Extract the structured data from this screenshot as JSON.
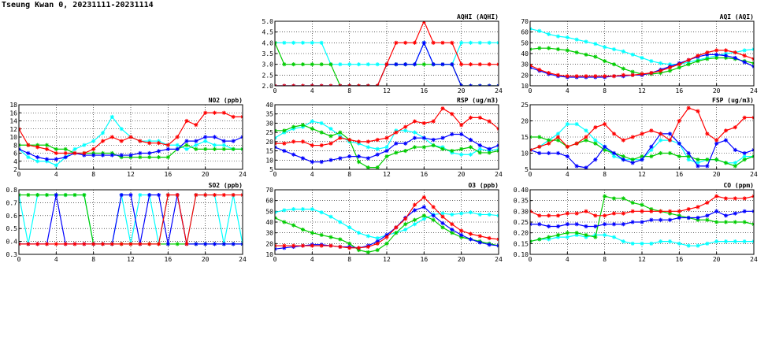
{
  "title": "Tseung Kwan 0, 20231111-20231114",
  "colors": {
    "red": "#ff0000",
    "blue": "#0000ff",
    "green": "#00cc00",
    "cyan": "#00ffff",
    "grid": "#000000"
  },
  "chart_data": [
    {
      "id": "aqhi",
      "type": "line",
      "title": "AQHI (AQHI)",
      "xlim": [
        0,
        24
      ],
      "xticks": [
        0,
        4,
        8,
        12,
        16,
        20,
        24
      ],
      "ylim": [
        2,
        5
      ],
      "yticks": [
        2.0,
        2.5,
        3.0,
        3.5,
        4.0,
        4.5,
        5.0
      ],
      "ytick_decimals": 1,
      "series": [
        {
          "color": "cyan",
          "values": [
            4,
            4,
            4,
            4,
            4,
            4,
            3,
            3,
            3,
            3,
            3,
            3,
            3,
            3,
            3,
            3,
            4,
            3,
            3,
            3,
            4,
            4,
            4,
            4,
            4
          ]
        },
        {
          "color": "green",
          "values": [
            4,
            3,
            3,
            3,
            3,
            3,
            3,
            2,
            2,
            2,
            2,
            2,
            3,
            3,
            3,
            3,
            3,
            3,
            3,
            3,
            2,
            2,
            2,
            2,
            2
          ]
        },
        {
          "color": "blue",
          "values": [
            2,
            2,
            2,
            2,
            2,
            2,
            2,
            2,
            2,
            2,
            2,
            2,
            3,
            3,
            3,
            3,
            4,
            3,
            3,
            3,
            2,
            2,
            2,
            2,
            2
          ]
        },
        {
          "color": "red",
          "values": [
            2,
            2,
            2,
            2,
            2,
            2,
            2,
            2,
            2,
            2,
            2,
            2,
            3,
            4,
            4,
            4,
            5,
            4,
            4,
            4,
            3,
            3,
            3,
            3,
            3
          ]
        }
      ]
    },
    {
      "id": "aqi",
      "type": "line",
      "title": "AQI (AQI)",
      "xlim": [
        0,
        24
      ],
      "xticks": [
        0,
        4,
        8,
        12,
        16,
        20,
        24
      ],
      "ylim": [
        10,
        70
      ],
      "yticks": [
        10,
        20,
        30,
        40,
        50,
        60,
        70
      ],
      "ytick_decimals": 0,
      "series": [
        {
          "color": "cyan",
          "values": [
            63,
            61,
            58,
            56,
            55,
            53,
            51,
            49,
            46,
            44,
            42,
            39,
            36,
            33,
            31,
            30,
            30,
            32,
            34,
            36,
            38,
            40,
            41,
            43,
            44
          ]
        },
        {
          "color": "green",
          "values": [
            44,
            45,
            45,
            44,
            43,
            41,
            39,
            37,
            33,
            30,
            26,
            23,
            21,
            21,
            22,
            24,
            27,
            30,
            33,
            35,
            36,
            36,
            35,
            33,
            31
          ]
        },
        {
          "color": "blue",
          "values": [
            27,
            24,
            21,
            19,
            18,
            18,
            18,
            18,
            18,
            19,
            19,
            20,
            20,
            22,
            25,
            28,
            31,
            34,
            37,
            39,
            39,
            38,
            36,
            32,
            28
          ]
        },
        {
          "color": "red",
          "values": [
            29,
            25,
            22,
            20,
            19,
            19,
            19,
            19,
            19,
            19,
            20,
            20,
            21,
            22,
            24,
            27,
            30,
            34,
            38,
            41,
            43,
            43,
            41,
            38,
            35
          ]
        }
      ]
    },
    {
      "id": "no2",
      "type": "line",
      "title": "NO2 (ppb)",
      "xlim": [
        0,
        24
      ],
      "xticks": [
        0,
        4,
        8,
        12,
        16,
        20,
        24
      ],
      "ylim": [
        2,
        18
      ],
      "yticks": [
        2,
        4,
        6,
        8,
        10,
        12,
        14,
        16,
        18
      ],
      "ytick_decimals": 0,
      "series": [
        {
          "color": "cyan",
          "values": [
            7,
            5,
            4,
            4,
            3,
            5,
            7,
            8,
            9,
            11,
            15,
            12,
            10,
            9,
            9,
            9,
            8,
            8,
            7,
            8,
            9,
            8,
            8,
            7,
            7
          ]
        },
        {
          "color": "green",
          "values": [
            8,
            8,
            8,
            8,
            7,
            7,
            6,
            6,
            6,
            6,
            6,
            5,
            5,
            5,
            5,
            5,
            5,
            7,
            8,
            7,
            7,
            7,
            7,
            7,
            7
          ]
        },
        {
          "color": "blue",
          "values": [
            7,
            6,
            5,
            4.5,
            4.5,
            5,
            6,
            5.5,
            5.5,
            5.5,
            5.5,
            5.5,
            5.5,
            6,
            6,
            6.5,
            7,
            7,
            9,
            9,
            10,
            10,
            9,
            9,
            10
          ]
        },
        {
          "color": "red",
          "values": [
            12,
            8,
            7.5,
            7,
            6,
            6,
            6,
            6,
            7,
            9,
            10,
            9,
            10,
            9,
            8.5,
            8.5,
            8,
            10,
            14,
            13,
            16,
            16,
            16,
            15,
            15
          ]
        }
      ]
    },
    {
      "id": "rsp",
      "type": "line",
      "title": "RSP (ug/m3)",
      "xlim": [
        0,
        24
      ],
      "xticks": [
        0,
        4,
        8,
        12,
        16,
        20,
        24
      ],
      "ylim": [
        5,
        40
      ],
      "yticks": [
        5,
        10,
        15,
        20,
        25,
        30,
        35,
        40
      ],
      "ytick_decimals": 0,
      "series": [
        {
          "color": "cyan",
          "values": [
            22,
            25,
            27,
            28,
            31,
            30,
            27,
            23,
            20,
            19,
            17,
            16,
            17,
            26,
            26,
            25,
            22,
            18,
            17,
            14,
            13,
            13,
            16,
            15,
            16
          ]
        },
        {
          "color": "green",
          "values": [
            26,
            26,
            28,
            29,
            27,
            25,
            23,
            25,
            21,
            9,
            6,
            6,
            12,
            14,
            15,
            17,
            17,
            18,
            16,
            15,
            16,
            17,
            14,
            14,
            15
          ]
        },
        {
          "color": "blue",
          "values": [
            17,
            15,
            13,
            11,
            9,
            9,
            10,
            11,
            12,
            12,
            11,
            13,
            15,
            19,
            19,
            22,
            22,
            21,
            22,
            24,
            24,
            21,
            18,
            16,
            18
          ]
        },
        {
          "color": "red",
          "values": [
            19,
            19,
            20,
            20,
            18,
            18,
            19,
            22,
            21,
            20,
            20,
            21,
            22,
            25,
            28,
            31,
            30,
            31,
            38,
            35,
            29,
            33,
            33,
            31,
            27
          ]
        }
      ]
    },
    {
      "id": "fsp",
      "type": "line",
      "title": "FSP (ug/m3)",
      "xlim": [
        0,
        24
      ],
      "xticks": [
        0,
        4,
        8,
        12,
        16,
        20,
        24
      ],
      "ylim": [
        5,
        25
      ],
      "yticks": [
        5,
        10,
        15,
        20,
        25
      ],
      "ytick_decimals": 0,
      "series": [
        {
          "color": "cyan",
          "values": [
            11,
            12,
            14,
            16,
            19,
            19,
            17,
            14,
            12,
            9,
            8,
            8,
            8,
            11,
            14,
            14,
            13,
            8,
            7,
            8,
            8,
            7,
            7,
            9,
            9
          ]
        },
        {
          "color": "green",
          "values": [
            15,
            15,
            14,
            14,
            12,
            13,
            14,
            13,
            11,
            10,
            9,
            8,
            9,
            9,
            10,
            10,
            9,
            9,
            8,
            8,
            8,
            7,
            6,
            8,
            9
          ]
        },
        {
          "color": "blue",
          "values": [
            11,
            10,
            10,
            10,
            9,
            6,
            5.5,
            8,
            12,
            10,
            8,
            7,
            8,
            12,
            16,
            16,
            13,
            10,
            6,
            6,
            13,
            14,
            11,
            10,
            11
          ]
        },
        {
          "color": "red",
          "values": [
            11,
            12,
            13,
            15,
            12,
            13,
            15,
            18,
            19,
            16,
            14,
            15,
            16,
            17,
            16,
            14,
            20,
            24,
            23,
            16,
            14,
            17,
            18,
            21,
            21
          ]
        }
      ]
    },
    {
      "id": "so2",
      "type": "line",
      "title": "SO2 (ppb)",
      "xlim": [
        0,
        24
      ],
      "xticks": [
        0,
        4,
        8,
        12,
        16,
        20,
        24
      ],
      "ylim": [
        0.3,
        0.8
      ],
      "yticks": [
        0.3,
        0.4,
        0.5,
        0.6,
        0.7,
        0.8
      ],
      "ytick_decimals": 1,
      "series": [
        {
          "color": "cyan",
          "values": [
            0.76,
            0.38,
            0.76,
            0.76,
            0.76,
            0.76,
            0.76,
            0.76,
            0.38,
            0.38,
            0.38,
            0.76,
            0.38,
            0.76,
            0.76,
            0.38,
            0.76,
            0.76,
            0.38,
            0.76,
            0.76,
            0.76,
            0.38,
            0.76,
            0.38
          ]
        },
        {
          "color": "green",
          "values": [
            0.76,
            0.76,
            0.76,
            0.76,
            0.76,
            0.76,
            0.76,
            0.76,
            0.38,
            0.38,
            0.38,
            0.38,
            0.38,
            0.38,
            0.38,
            0.38,
            0.38,
            0.38,
            0.38,
            0.38,
            0.38,
            0.38,
            0.38,
            0.38,
            0.38
          ]
        },
        {
          "color": "blue",
          "values": [
            0.38,
            0.38,
            0.38,
            0.38,
            0.76,
            0.38,
            0.38,
            0.38,
            0.38,
            0.38,
            0.38,
            0.76,
            0.76,
            0.38,
            0.76,
            0.76,
            0.38,
            0.76,
            0.38,
            0.38,
            0.38,
            0.38,
            0.38,
            0.38,
            0.38
          ]
        },
        {
          "color": "red",
          "values": [
            0.38,
            0.38,
            0.38,
            0.38,
            0.38,
            0.38,
            0.38,
            0.38,
            0.38,
            0.38,
            0.38,
            0.38,
            0.38,
            0.38,
            0.38,
            0.38,
            0.76,
            0.76,
            0.38,
            0.76,
            0.76,
            0.76,
            0.76,
            0.76,
            0.76
          ]
        }
      ]
    },
    {
      "id": "o3",
      "type": "line",
      "title": "O3 (ppb)",
      "xlim": [
        0,
        24
      ],
      "xticks": [
        0,
        4,
        8,
        12,
        16,
        20,
        24
      ],
      "ylim": [
        10,
        70
      ],
      "yticks": [
        10,
        20,
        30,
        40,
        50,
        60,
        70
      ],
      "ytick_decimals": 0,
      "series": [
        {
          "color": "cyan",
          "values": [
            49,
            51,
            52,
            52,
            52,
            49,
            45,
            40,
            35,
            30,
            27,
            25,
            28,
            30,
            33,
            38,
            43,
            47,
            48,
            47,
            48,
            49,
            47,
            47,
            46
          ]
        },
        {
          "color": "green",
          "values": [
            44,
            40,
            37,
            33,
            30,
            28,
            26,
            24,
            20,
            14,
            12,
            14,
            20,
            30,
            38,
            42,
            46,
            42,
            35,
            30,
            26,
            24,
            22,
            20,
            18
          ]
        },
        {
          "color": "blue",
          "values": [
            15,
            16,
            17,
            18,
            19,
            19,
            18,
            17,
            17,
            16,
            18,
            22,
            28,
            35,
            44,
            51,
            54,
            46,
            39,
            33,
            28,
            24,
            21,
            19,
            18
          ]
        },
        {
          "color": "red",
          "values": [
            18,
            18,
            18,
            18,
            18,
            18,
            18,
            17,
            16,
            16,
            17,
            20,
            26,
            35,
            43,
            56,
            63,
            54,
            45,
            38,
            32,
            29,
            27,
            25,
            24
          ]
        }
      ]
    },
    {
      "id": "co",
      "type": "line",
      "title": "CO (ppm)",
      "xlim": [
        0,
        24
      ],
      "xticks": [
        0,
        4,
        8,
        12,
        16,
        20,
        24
      ],
      "ylim": [
        0.1,
        0.4
      ],
      "yticks": [
        0.1,
        0.15,
        0.2,
        0.25,
        0.3,
        0.35,
        0.4
      ],
      "ytick_decimals": 2,
      "series": [
        {
          "color": "cyan",
          "values": [
            0.16,
            0.17,
            0.17,
            0.18,
            0.18,
            0.19,
            0.18,
            0.19,
            0.19,
            0.18,
            0.16,
            0.15,
            0.15,
            0.15,
            0.16,
            0.16,
            0.15,
            0.14,
            0.14,
            0.15,
            0.16,
            0.16,
            0.16,
            0.16,
            0.16
          ]
        },
        {
          "color": "green",
          "values": [
            0.16,
            0.17,
            0.18,
            0.19,
            0.2,
            0.2,
            0.19,
            0.18,
            0.37,
            0.36,
            0.36,
            0.34,
            0.33,
            0.31,
            0.3,
            0.29,
            0.28,
            0.27,
            0.26,
            0.26,
            0.25,
            0.25,
            0.25,
            0.25,
            0.24
          ]
        },
        {
          "color": "blue",
          "values": [
            0.24,
            0.24,
            0.23,
            0.23,
            0.24,
            0.24,
            0.23,
            0.23,
            0.24,
            0.24,
            0.24,
            0.25,
            0.25,
            0.26,
            0.26,
            0.26,
            0.27,
            0.27,
            0.27,
            0.28,
            0.3,
            0.28,
            0.29,
            0.3,
            0.3
          ]
        },
        {
          "color": "red",
          "values": [
            0.3,
            0.28,
            0.28,
            0.28,
            0.29,
            0.29,
            0.3,
            0.28,
            0.28,
            0.29,
            0.29,
            0.3,
            0.3,
            0.3,
            0.3,
            0.3,
            0.3,
            0.31,
            0.32,
            0.34,
            0.37,
            0.36,
            0.36,
            0.36,
            0.37
          ]
        }
      ]
    }
  ]
}
